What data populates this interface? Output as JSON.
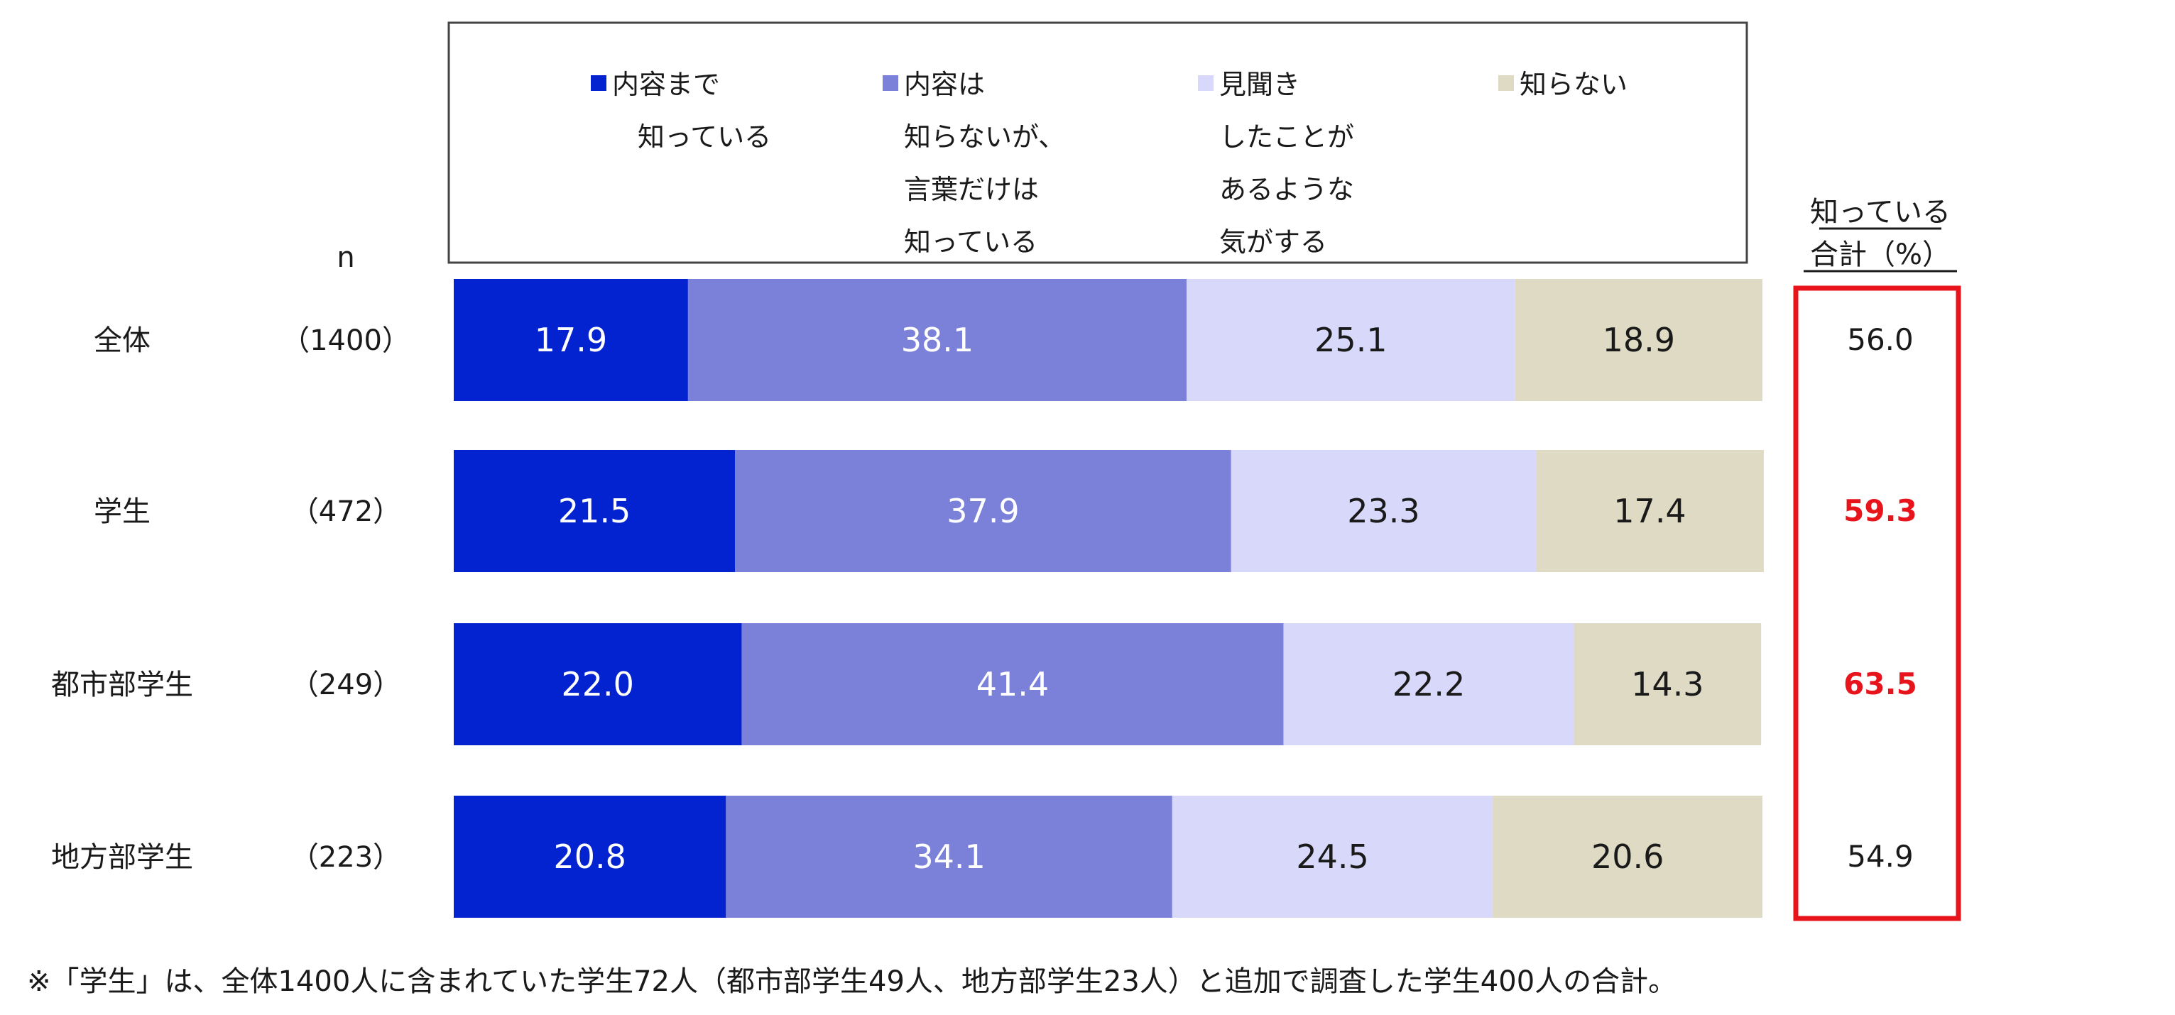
{
  "chart_data": {
    "type": "bar",
    "orientation": "horizontal",
    "stacked": true,
    "percent": true,
    "categories": [
      "全体",
      "学生",
      "都市部学生",
      "地方部学生"
    ],
    "n_header": "n",
    "n_values": [
      "（1400）",
      "（472）",
      "（249）",
      "（223）"
    ],
    "series": [
      {
        "name": "内容まで知っている",
        "legend_lines": [
          "内容まで",
          "知っている"
        ],
        "color": "#0323d0",
        "text_color": "#ffffff",
        "values": [
          17.9,
          21.5,
          22.0,
          20.8
        ]
      },
      {
        "name": "内容は知らないが、言葉だけは知っている",
        "legend_lines": [
          "内容は",
          "知らないが、",
          "言葉だけは",
          "知っている"
        ],
        "color": "#7b80d8",
        "text_color": "#ffffff",
        "values": [
          38.1,
          37.9,
          41.4,
          34.1
        ]
      },
      {
        "name": "見聞きしたことがあるような気がする",
        "legend_lines": [
          "見聞き",
          "したことが",
          "あるような",
          "気がする"
        ],
        "color": "#d8d8fa",
        "text_color": "#1a1a1a",
        "values": [
          25.1,
          23.3,
          22.2,
          24.5
        ]
      },
      {
        "name": "知らない",
        "legend_lines": [
          "知らない"
        ],
        "color": "#dedac4",
        "text_color": "#1a1a1a",
        "values": [
          18.9,
          17.4,
          14.3,
          20.6
        ]
      }
    ],
    "totals_header": [
      "知っている",
      "合計（%）"
    ],
    "totals": [
      {
        "value": "56.0",
        "highlight": false
      },
      {
        "value": "59.3",
        "highlight": true
      },
      {
        "value": "63.5",
        "highlight": true
      },
      {
        "value": "54.9",
        "highlight": false
      }
    ],
    "highlight_color": "#e8141b",
    "box_color": "#e8141b",
    "xlim": [
      0,
      100
    ],
    "grid": false,
    "legend_position": "top"
  },
  "footnote": "※「学生」は、全体1400人に含まれていた学生72人（都市部学生49人、地方部学生23人）と追加で調査した学生400人の合計。"
}
